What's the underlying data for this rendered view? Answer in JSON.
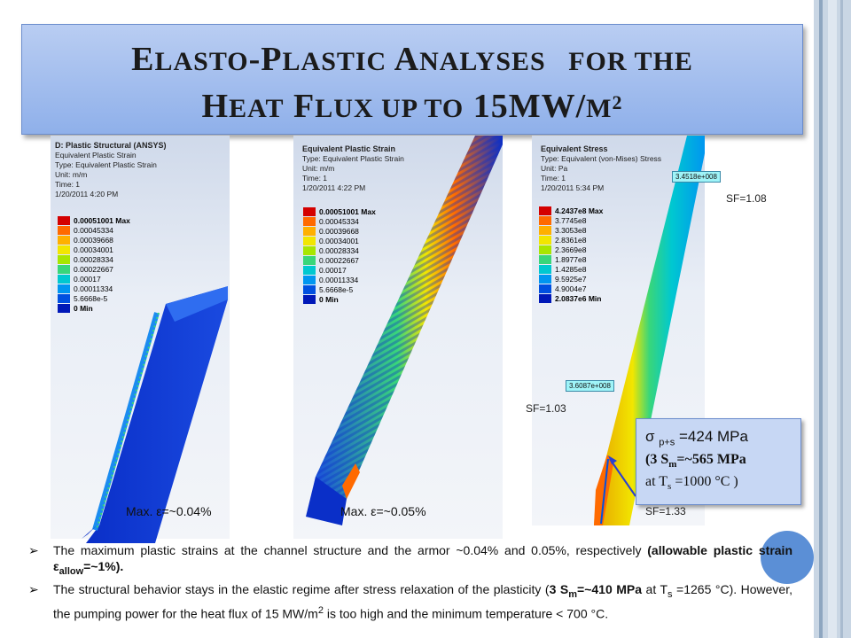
{
  "slide": {
    "title_line1_parts": [
      "E",
      "LASTO",
      "-P",
      "LASTIC",
      " A",
      "NALYSES",
      "   FOR THE"
    ],
    "title_line2_parts": [
      "H",
      "EAT",
      " F",
      "LUX UP TO",
      " 15MW/",
      "M",
      "2"
    ]
  },
  "panels": [
    {
      "header": [
        "D: Plastic Structural (ANSYS)",
        "Equivalent Plastic Strain",
        "Type: Equivalent Plastic Strain",
        "Unit: m/m",
        "Time: 1",
        "1/20/2011 4:20 PM"
      ],
      "scale": [
        "0.00051001 Max",
        "0.00045334",
        "0.00039668",
        "0.00034001",
        "0.00028334",
        "0.00022667",
        "0.00017",
        "0.00011334",
        "5.6668e-5",
        "0 Min"
      ],
      "max_label": "Max. ε=~0.04%"
    },
    {
      "header": [
        "Equivalent Plastic Strain",
        "Type: Equivalent Plastic Strain",
        "Unit: m/m",
        "Time: 1",
        "1/20/2011 4:22 PM"
      ],
      "scale": [
        "0.00051001 Max",
        "0.00045334",
        "0.00039668",
        "0.00034001",
        "0.00028334",
        "0.00022667",
        "0.00017",
        "0.00011334",
        "5.6668e-5",
        "0 Min"
      ],
      "max_label": "Max. ε=~0.05%"
    },
    {
      "header": [
        "Equivalent Stress",
        "Type: Equivalent (von-Mises) Stress",
        "Unit: Pa",
        "Time: 1",
        "1/20/2011 5:34 PM"
      ],
      "scale": [
        "4.2437e8 Max",
        "3.7745e8",
        "3.3053e8",
        "2.8361e8",
        "2.3669e8",
        "1.8977e8",
        "1.4285e8",
        "9.5925e7",
        "4.9004e7",
        "2.0837e6 Min"
      ],
      "value_box_1": "3.4518e+008",
      "value_box_2": "3.6087e+008"
    }
  ],
  "scale_colors": [
    "#d40000",
    "#ff6a00",
    "#ffb000",
    "#f2e600",
    "#a8e600",
    "#39d67a",
    "#00c8d0",
    "#0096f0",
    "#0050e0",
    "#0018b8"
  ],
  "safety_factors": {
    "top": "SF=1.08",
    "mid": "SF=1.03",
    "bottom": "SF=1.33"
  },
  "callout": {
    "line1_a": "σ",
    "line1_sub": "p+s",
    "line1_b": " =424 MPa",
    "line2_a": "(3 S",
    "line2_sub": "m",
    "line2_b": "=~565 MPa",
    "line3_a": "at T",
    "line3_sub": "s",
    "line3_b": " =1000 °C )"
  },
  "bullets": {
    "b1_text": "The maximum plastic strains at the channel structure and the armor  ~0.04% and 0.05%, respectively ",
    "b1_bold": "(allowable plastic strain ε",
    "b1_sub": "allow",
    "b1_end": "=~1%).",
    "b2_a": "The structural behavior  stays in the elastic regime after stress relaxation of the plasticity (",
    "b2_bold1": "3 S",
    "b2_sub1": "m",
    "b2_bold2": "=~410 MPa",
    "b2_b": " at T",
    "b2_sub2": "s",
    "b2_c": " =1265 °C). However, the pumping power for the heat flux of 15 MW/m",
    "b2_sup": "2",
    "b2_d": " is too high and the minimum temperature < 700 °C."
  }
}
